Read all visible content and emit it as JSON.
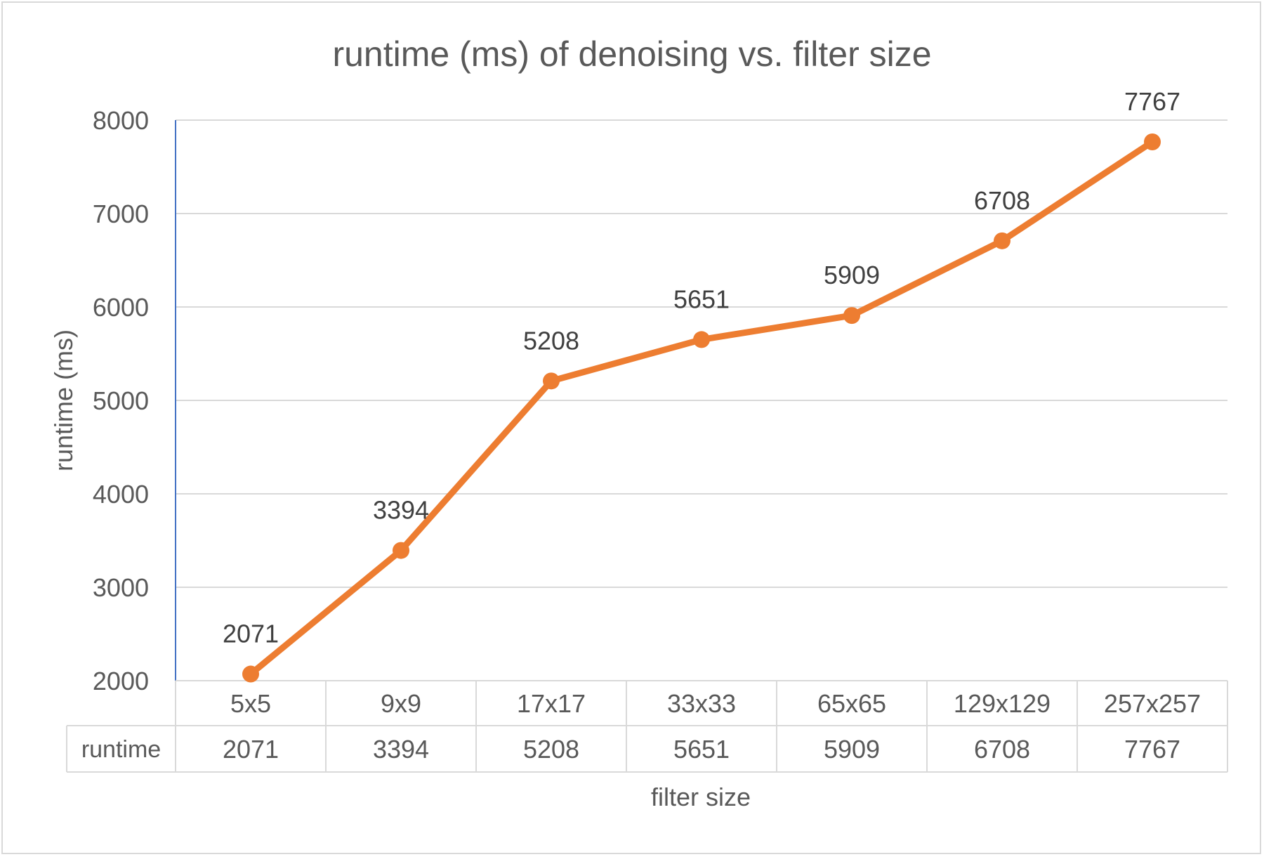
{
  "chart_data": {
    "type": "line",
    "title": "runtime (ms) of denoising vs. filter size",
    "xlabel": "filter size",
    "ylabel": "runtime (ms)",
    "categories": [
      "5x5",
      "9x9",
      "17x17",
      "33x33",
      "65x65",
      "129x129",
      "257x257"
    ],
    "series": [
      {
        "name": "runtime",
        "values": [
          2071,
          3394,
          5208,
          5651,
          5909,
          6708,
          7767
        ]
      }
    ],
    "ylim": [
      2000,
      8000
    ],
    "yticks": [
      2000,
      3000,
      4000,
      5000,
      6000,
      7000,
      8000
    ],
    "data_labels": true,
    "data_table": true,
    "grid": true,
    "colors": {
      "line": "#ed7d31",
      "grid": "#d9d9d9",
      "axis": "#4472c4",
      "text": "#595959"
    }
  }
}
